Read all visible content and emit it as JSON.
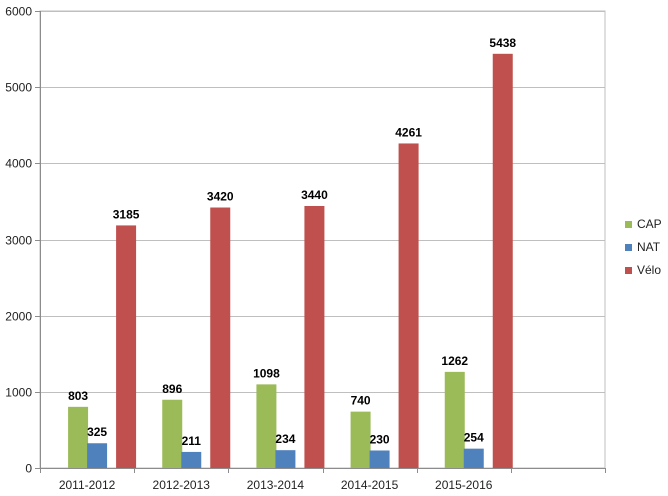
{
  "chart_data": {
    "type": "bar",
    "categories": [
      "2011-2012",
      "2012-2013",
      "2013-2014",
      "2014-2015",
      "2015-2016",
      ""
    ],
    "series": [
      {
        "name": "CAP",
        "color": "#9BBB59",
        "values": [
          803,
          896,
          1098,
          740,
          1262,
          null
        ]
      },
      {
        "name": "NAT",
        "color": "#4F81BD",
        "values": [
          325,
          211,
          234,
          230,
          254,
          null
        ]
      },
      {
        "name": "Vélo",
        "color": "#C0504D",
        "values": [
          3185,
          3420,
          3440,
          4261,
          5438,
          null
        ]
      }
    ],
    "data_labels": true,
    "title": "",
    "xlabel": "",
    "ylabel": "",
    "ylim": [
      0,
      6000
    ],
    "yticks": [
      0,
      1000,
      2000,
      3000,
      4000,
      5000,
      6000
    ],
    "grid": true,
    "legend_position": "right"
  }
}
